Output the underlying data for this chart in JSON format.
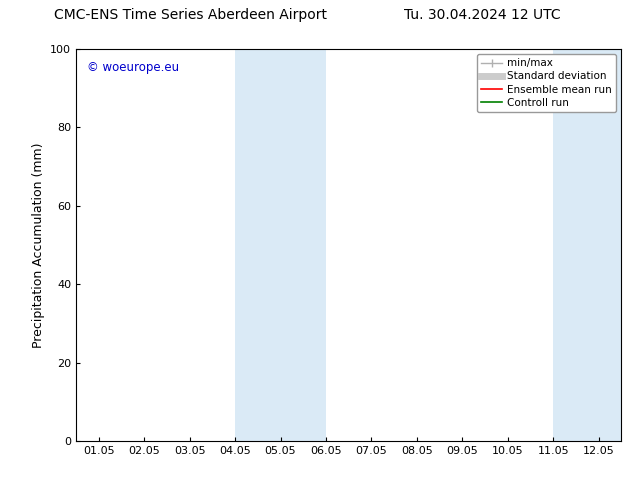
{
  "title_left": "CMC-ENS Time Series Aberdeen Airport",
  "title_right": "Tu. 30.04.2024 12 UTC",
  "ylabel": "Precipitation Accumulation (mm)",
  "watermark": "© woeurope.eu",
  "ylim": [
    0,
    100
  ],
  "x_tick_labels": [
    "01.05",
    "02.05",
    "03.05",
    "04.05",
    "05.05",
    "06.05",
    "07.05",
    "08.05",
    "09.05",
    "10.05",
    "11.05",
    "12.05"
  ],
  "x_tick_positions": [
    0,
    1,
    2,
    3,
    4,
    5,
    6,
    7,
    8,
    9,
    10,
    11
  ],
  "xlim": [
    -0.5,
    11.5
  ],
  "shaded_regions": [
    {
      "x_start": 3.0,
      "x_end": 5.0,
      "color": "#daeaf6"
    },
    {
      "x_start": 10.0,
      "x_end": 11.5,
      "color": "#daeaf6"
    }
  ],
  "legend_items": [
    {
      "label": "min/max",
      "color": "#b0b0b0",
      "lw": 1.0,
      "ls": "-"
    },
    {
      "label": "Standard deviation",
      "color": "#cccccc",
      "lw": 5,
      "ls": "-"
    },
    {
      "label": "Ensemble mean run",
      "color": "red",
      "lw": 1.2,
      "ls": "-"
    },
    {
      "label": "Controll run",
      "color": "green",
      "lw": 1.2,
      "ls": "-"
    }
  ],
  "watermark_color": "#0000cc",
  "title_fontsize": 10,
  "axis_label_fontsize": 9,
  "tick_fontsize": 8,
  "legend_fontsize": 7.5,
  "background_color": "#ffffff",
  "plot_bg_color": "#ffffff"
}
